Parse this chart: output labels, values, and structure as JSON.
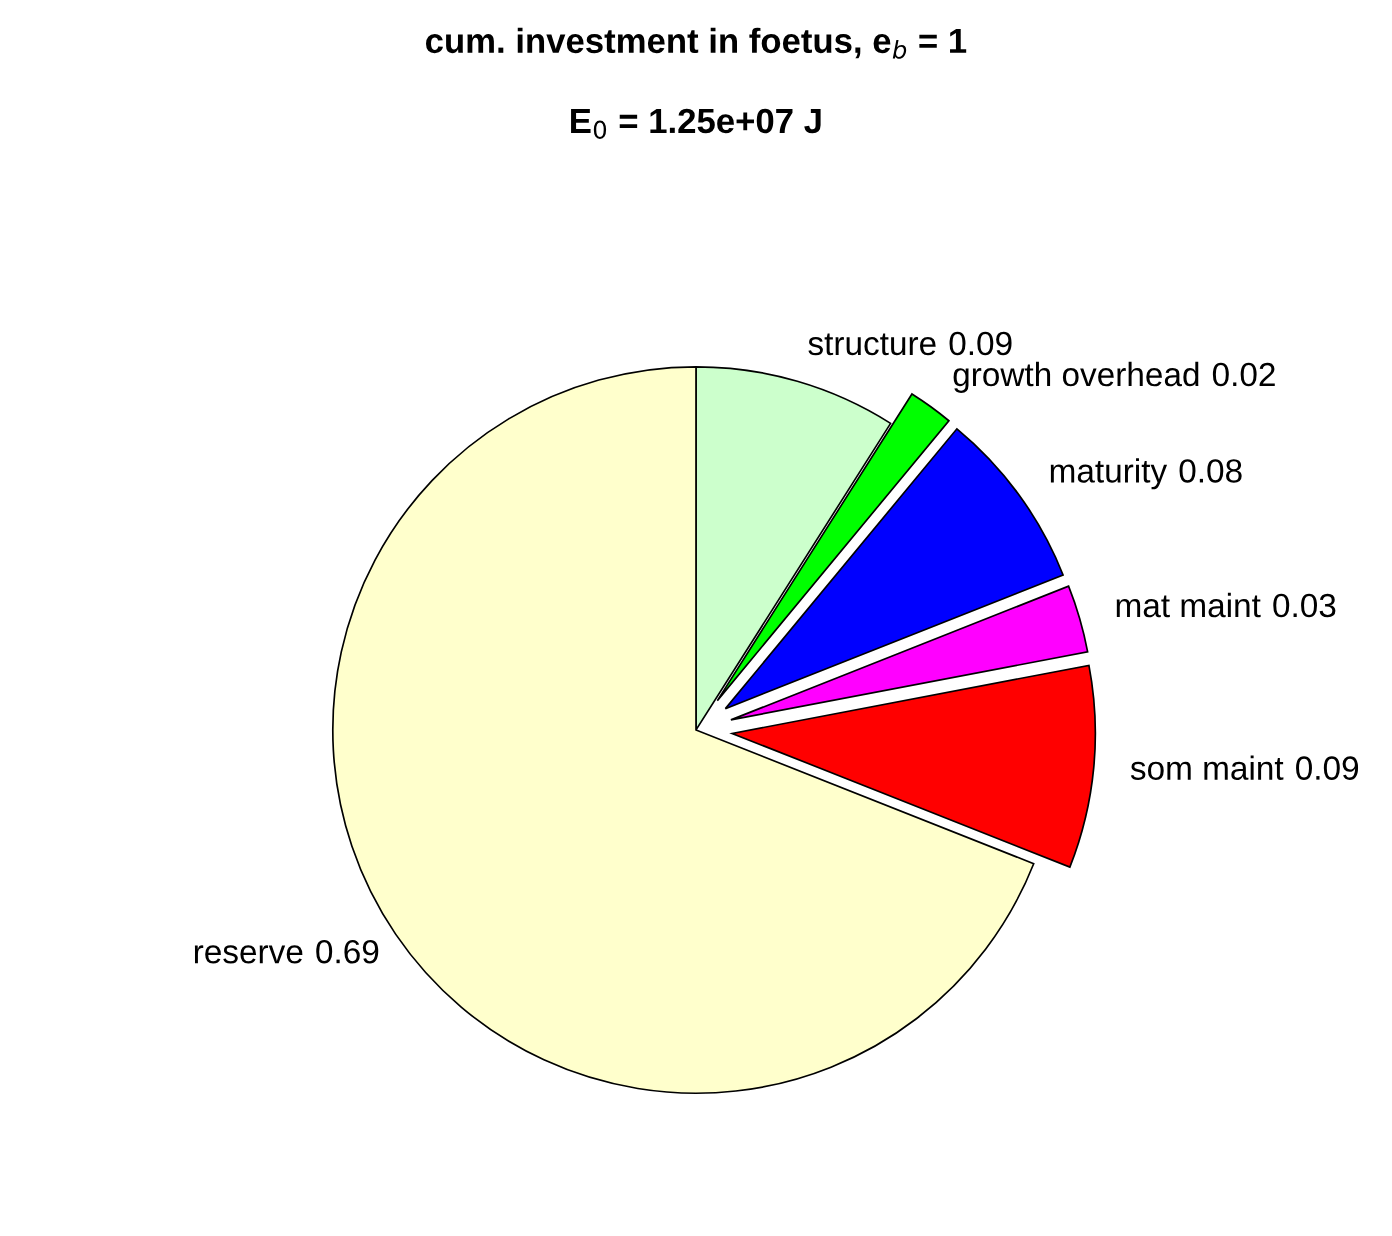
{
  "chart_data": {
    "type": "pie",
    "title": "cum. investment in foetus, e$_{b}$ = 1",
    "subtitle": "E$_{0}$ = 1.25e+07 J",
    "categories": [
      "structure",
      "growth overhead",
      "maturity",
      "mat maint",
      "som maint",
      "reserve"
    ],
    "values": [
      0.09,
      0.02,
      0.08,
      0.03,
      0.09,
      0.69
    ],
    "colors": [
      "#ccffcc",
      "#00ff00",
      "#0000ff",
      "#ff00ff",
      "#ff0000",
      "#ffffcc"
    ],
    "data_labels": true
  }
}
